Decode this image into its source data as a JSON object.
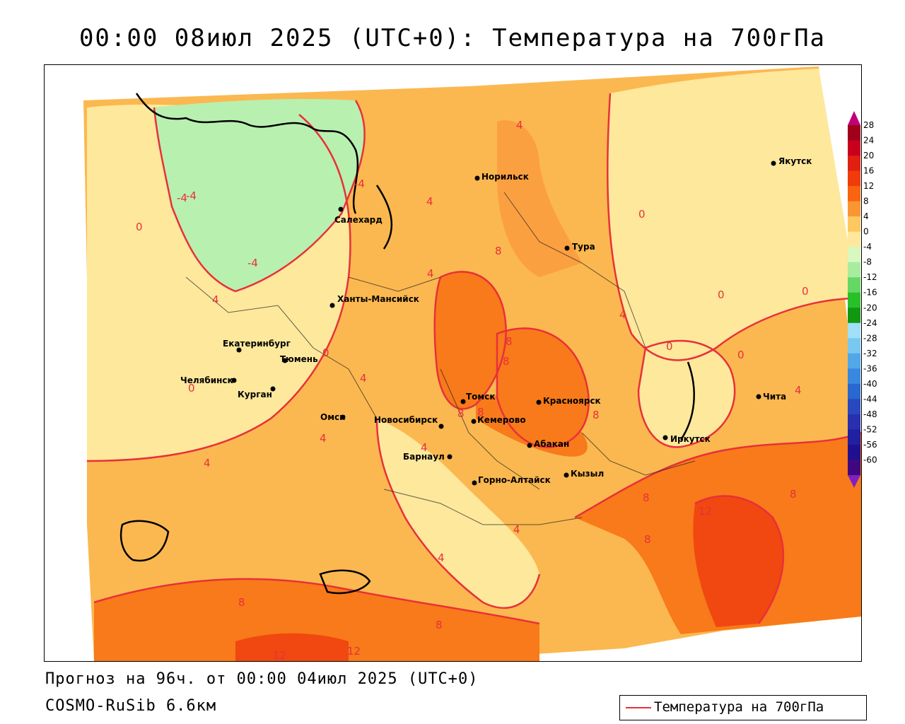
{
  "title": "00:00 08июл 2025 (UTC+0): Температура на 700гПа",
  "forecast_line": "Прогноз на 96ч. от 00:00 04июл 2025 (UTC+0)",
  "model_line": "COSMO-RuSib 6.6км",
  "legend": {
    "label": "Температура на 700гПа",
    "color": "#e8303a"
  },
  "cities": [
    {
      "name": "Якутск"
    },
    {
      "name": "Норильск"
    },
    {
      "name": "Салехард"
    },
    {
      "name": "Тура"
    },
    {
      "name": "Ханты-Мансийск"
    },
    {
      "name": "Екатеринбург"
    },
    {
      "name": "Тюмень"
    },
    {
      "name": "Челябинск"
    },
    {
      "name": "Курган"
    },
    {
      "name": "Томск"
    },
    {
      "name": "Красноярск"
    },
    {
      "name": "Омск"
    },
    {
      "name": "Новосибирск"
    },
    {
      "name": "Кемерово"
    },
    {
      "name": "Абакан"
    },
    {
      "name": "Барнаул"
    },
    {
      "name": "Кызыл"
    },
    {
      "name": "Горно-Алтайск"
    },
    {
      "name": "Иркутск"
    },
    {
      "name": "Чита"
    }
  ],
  "contour_labels": [
    "4",
    "-4",
    "4",
    "-4",
    "0",
    "-4",
    "4",
    "4",
    "8",
    "0",
    "-4",
    "0",
    "4",
    "8",
    "8",
    "8",
    "0",
    "0",
    "0",
    "0",
    "4",
    "0",
    "4",
    "8",
    "8",
    "4",
    "4",
    "4",
    "8",
    "12",
    "8",
    "4",
    "8",
    "8",
    "12",
    "12",
    "4",
    "8"
  ],
  "color_scale": {
    "ticks": [
      "28",
      "24",
      "20",
      "16",
      "12",
      "8",
      "4",
      "0",
      "-4",
      "-8",
      "-12",
      "-16",
      "-20",
      "-24",
      "-28",
      "-32",
      "-36",
      "-40",
      "-44",
      "-48",
      "-52",
      "-56",
      "-60"
    ],
    "colors": [
      "#a0001a",
      "#c8001e",
      "#e02010",
      "#f03c0a",
      "#fa6410",
      "#fa9632",
      "#fdc860",
      "#fde89c",
      "#d8f8c0",
      "#a8eca0",
      "#64d864",
      "#28c028",
      "#109810",
      "#a0e0f8",
      "#78c8f0",
      "#50a8e8",
      "#3888e0",
      "#2868d0",
      "#2848c0",
      "#2830b0",
      "#2020a0",
      "#201090",
      "#400880"
    ],
    "top_arrow_color": "#c0007a",
    "bottom_arrow_color": "#8020c0"
  }
}
